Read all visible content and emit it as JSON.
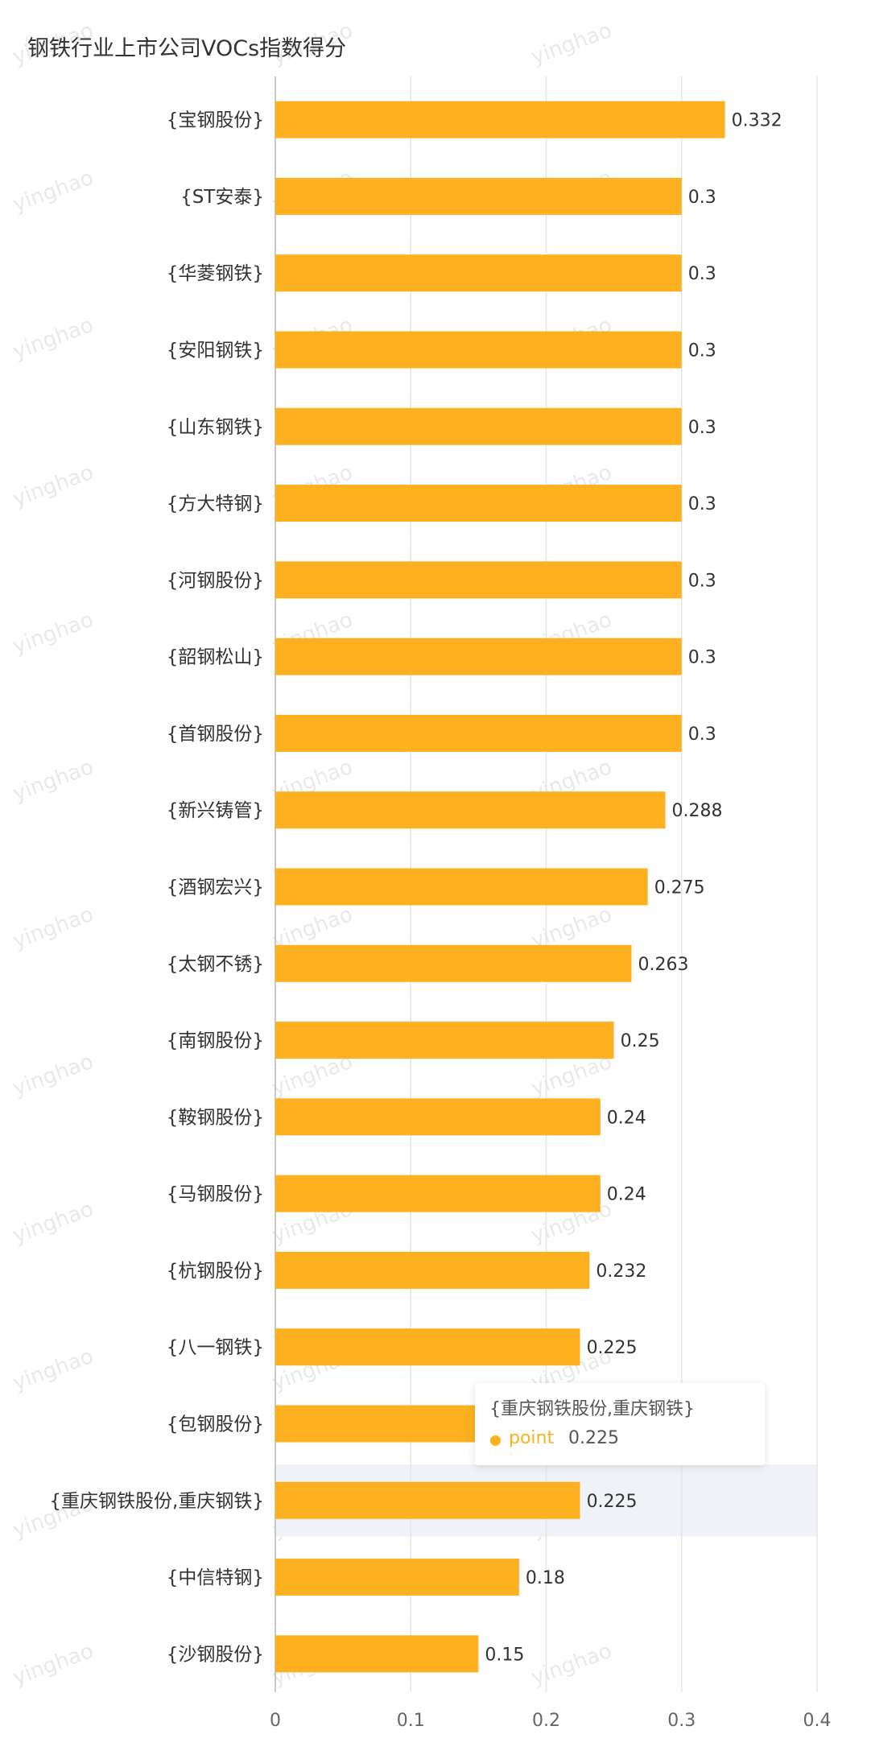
{
  "title": "钢铁行业上市公司VOCs指数得分",
  "watermark": "yinghao",
  "colors": {
    "bar": "#FDB120",
    "highlight": "#EFF2F7",
    "grid": "#E6E6E6",
    "axis": "#C8C8C8"
  },
  "tooltip": {
    "title": "{重庆钢铁股份,重庆钢铁}",
    "series": "point",
    "value": "0.225"
  },
  "chart_data": {
    "type": "bar",
    "orientation": "horizontal",
    "title": "钢铁行业上市公司VOCs指数得分",
    "categories": [
      "{宝钢股份}",
      "{ST安泰}",
      "{华菱钢铁}",
      "{安阳钢铁}",
      "{山东钢铁}",
      "{方大特钢}",
      "{河钢股份}",
      "{韶钢松山}",
      "{首钢股份}",
      "{新兴铸管}",
      "{酒钢宏兴}",
      "{太钢不锈}",
      "{南钢股份}",
      "{鞍钢股份}",
      "{马钢股份}",
      "{杭钢股份}",
      "{八一钢铁}",
      "{包钢股份}",
      "{重庆钢铁股份,重庆钢铁}",
      "{中信特钢}",
      "{沙钢股份}"
    ],
    "series": [
      {
        "name": "point",
        "values": [
          0.332,
          0.3,
          0.3,
          0.3,
          0.3,
          0.3,
          0.3,
          0.3,
          0.3,
          0.288,
          0.275,
          0.263,
          0.25,
          0.24,
          0.24,
          0.232,
          0.225,
          0.15,
          0.225,
          0.18,
          0.15
        ]
      }
    ],
    "value_labels": [
      "0.332",
      "0.3",
      "0.3",
      "0.3",
      "0.3",
      "0.3",
      "0.3",
      "0.3",
      "0.3",
      "0.288",
      "0.275",
      "0.263",
      "0.25",
      "0.24",
      "0.24",
      "0.232",
      "0.225",
      "",
      "0.225",
      "0.18",
      "0.15"
    ],
    "xlim": [
      0,
      0.4
    ],
    "xticks": [
      "0",
      "0.1",
      "0.2",
      "0.3",
      "0.4"
    ],
    "grid": true,
    "highlighted_category": "{重庆钢铁股份,重庆钢铁}"
  }
}
